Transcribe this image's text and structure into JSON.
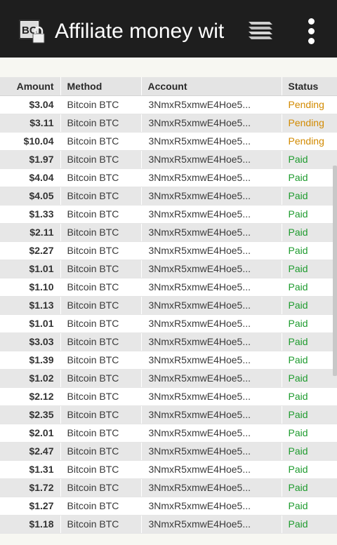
{
  "appbar": {
    "icon": "bc-lock-icon",
    "title": "Affiliate money wit",
    "stack_icon": "stack-icon",
    "menu_icon": "more-vert-icon",
    "background": "#1e1e1e"
  },
  "table": {
    "headers": {
      "amount": "Amount",
      "method": "Method",
      "account": "Account",
      "status": "Status"
    },
    "rows": [
      {
        "amount": "$3.04",
        "method": "Bitcoin BTC",
        "account": "3NmxR5xmwE4Hoe5...",
        "status": "Pending"
      },
      {
        "amount": "$3.11",
        "method": "Bitcoin BTC",
        "account": "3NmxR5xmwE4Hoe5...",
        "status": "Pending"
      },
      {
        "amount": "$10.04",
        "method": "Bitcoin BTC",
        "account": "3NmxR5xmwE4Hoe5...",
        "status": "Pending"
      },
      {
        "amount": "$1.97",
        "method": "Bitcoin BTC",
        "account": "3NmxR5xmwE4Hoe5...",
        "status": "Paid"
      },
      {
        "amount": "$4.04",
        "method": "Bitcoin BTC",
        "account": "3NmxR5xmwE4Hoe5...",
        "status": "Paid"
      },
      {
        "amount": "$4.05",
        "method": "Bitcoin BTC",
        "account": "3NmxR5xmwE4Hoe5...",
        "status": "Paid"
      },
      {
        "amount": "$1.33",
        "method": "Bitcoin BTC",
        "account": "3NmxR5xmwE4Hoe5...",
        "status": "Paid"
      },
      {
        "amount": "$2.11",
        "method": "Bitcoin BTC",
        "account": "3NmxR5xmwE4Hoe5...",
        "status": "Paid"
      },
      {
        "amount": "$2.27",
        "method": "Bitcoin BTC",
        "account": "3NmxR5xmwE4Hoe5...",
        "status": "Paid"
      },
      {
        "amount": "$1.01",
        "method": "Bitcoin BTC",
        "account": "3NmxR5xmwE4Hoe5...",
        "status": "Paid"
      },
      {
        "amount": "$1.10",
        "method": "Bitcoin BTC",
        "account": "3NmxR5xmwE4Hoe5...",
        "status": "Paid"
      },
      {
        "amount": "$1.13",
        "method": "Bitcoin BTC",
        "account": "3NmxR5xmwE4Hoe5...",
        "status": "Paid"
      },
      {
        "amount": "$1.01",
        "method": "Bitcoin BTC",
        "account": "3NmxR5xmwE4Hoe5...",
        "status": "Paid"
      },
      {
        "amount": "$3.03",
        "method": "Bitcoin BTC",
        "account": "3NmxR5xmwE4Hoe5...",
        "status": "Paid"
      },
      {
        "amount": "$1.39",
        "method": "Bitcoin BTC",
        "account": "3NmxR5xmwE4Hoe5...",
        "status": "Paid"
      },
      {
        "amount": "$1.02",
        "method": "Bitcoin BTC",
        "account": "3NmxR5xmwE4Hoe5...",
        "status": "Paid"
      },
      {
        "amount": "$2.12",
        "method": "Bitcoin BTC",
        "account": "3NmxR5xmwE4Hoe5...",
        "status": "Paid"
      },
      {
        "amount": "$2.35",
        "method": "Bitcoin BTC",
        "account": "3NmxR5xmwE4Hoe5...",
        "status": "Paid"
      },
      {
        "amount": "$2.01",
        "method": "Bitcoin BTC",
        "account": "3NmxR5xmwE4Hoe5...",
        "status": "Paid"
      },
      {
        "amount": "$2.47",
        "method": "Bitcoin BTC",
        "account": "3NmxR5xmwE4Hoe5...",
        "status": "Paid"
      },
      {
        "amount": "$1.31",
        "method": "Bitcoin BTC",
        "account": "3NmxR5xmwE4Hoe5...",
        "status": "Paid"
      },
      {
        "amount": "$1.72",
        "method": "Bitcoin BTC",
        "account": "3NmxR5xmwE4Hoe5...",
        "status": "Paid"
      },
      {
        "amount": "$1.27",
        "method": "Bitcoin BTC",
        "account": "3NmxR5xmwE4Hoe5...",
        "status": "Paid"
      },
      {
        "amount": "$1.18",
        "method": "Bitcoin BTC",
        "account": "3NmxR5xmwE4Hoe5...",
        "status": "Paid"
      }
    ]
  },
  "colors": {
    "pending": "#d28a00",
    "paid": "#1e9b2e",
    "header_bg": "#e4e4e4"
  }
}
